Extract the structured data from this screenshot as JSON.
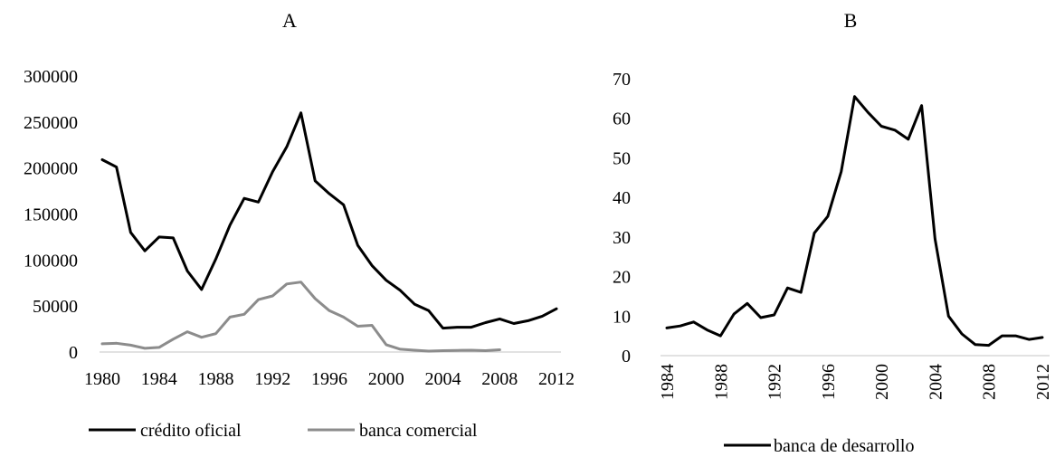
{
  "chart_data": [
    {
      "type": "line",
      "title": "A",
      "xlabel": "",
      "ylabel": "",
      "ylim": [
        0,
        300000
      ],
      "xlim": [
        1980,
        2012
      ],
      "x_ticks": [
        "1980",
        "1984",
        "1988",
        "1992",
        "1996",
        "2000",
        "2004",
        "2008",
        "2012"
      ],
      "y_ticks": [
        "0",
        "50000",
        "100000",
        "150000",
        "200000",
        "250000",
        "300000"
      ],
      "grid": false,
      "legend": "bottom",
      "series": [
        {
          "name": "crédito oficial",
          "color": "#000000",
          "x": [
            1980,
            1981,
            1982,
            1983,
            1984,
            1985,
            1986,
            1987,
            1988,
            1989,
            1990,
            1991,
            1992,
            1993,
            1994,
            1995,
            1996,
            1997,
            1998,
            1999,
            2000,
            2001,
            2002,
            2003,
            2004,
            2005,
            2006,
            2007,
            2008,
            2009,
            2010,
            2011,
            2012
          ],
          "values": [
            209000,
            201000,
            130000,
            110000,
            125000,
            124000,
            88000,
            68000,
            101000,
            138000,
            167000,
            163000,
            196000,
            223000,
            260000,
            186000,
            172000,
            160000,
            116000,
            94000,
            78000,
            67000,
            52000,
            45000,
            26000,
            27000,
            27000,
            32000,
            36000,
            31000,
            34000,
            39000,
            47000
          ]
        },
        {
          "name": "banca comercial",
          "color": "#8c8c8c",
          "x": [
            1980,
            1981,
            1982,
            1983,
            1984,
            1985,
            1986,
            1987,
            1988,
            1989,
            1990,
            1991,
            1992,
            1993,
            1994,
            1995,
            1996,
            1997,
            1998,
            1999,
            2000,
            2001,
            2002,
            2003,
            2004,
            2005,
            2006,
            2007,
            2008
          ],
          "values": [
            9000,
            9500,
            7500,
            4000,
            5000,
            14000,
            22000,
            16000,
            20000,
            38000,
            41000,
            57000,
            61000,
            74000,
            76000,
            58000,
            45000,
            38000,
            28000,
            29000,
            8000,
            3000,
            2000,
            1000,
            1500,
            1800,
            2000,
            1500,
            2500
          ]
        }
      ]
    },
    {
      "type": "line",
      "title": "B",
      "xlabel": "",
      "ylabel": "",
      "ylim": [
        0,
        70
      ],
      "xlim": [
        1984,
        2012
      ],
      "x_ticks": [
        "1984",
        "1988",
        "1992",
        "1996",
        "2000",
        "2004",
        "2008",
        "2012"
      ],
      "y_ticks": [
        "0",
        "10",
        "20",
        "30",
        "40",
        "50",
        "60",
        "70"
      ],
      "grid": false,
      "legend": "bottom",
      "series": [
        {
          "name": "banca de desarrollo",
          "color": "#000000",
          "x": [
            1984,
            1985,
            1986,
            1987,
            1988,
            1989,
            1990,
            1991,
            1992,
            1993,
            1994,
            1995,
            1996,
            1997,
            1998,
            1999,
            2000,
            2001,
            2002,
            2003,
            2004,
            2005,
            2006,
            2007,
            2008,
            2009,
            2010,
            2011,
            2012
          ],
          "values": [
            7,
            7.5,
            8.5,
            6.5,
            5,
            10.5,
            13.2,
            9.6,
            10.3,
            17.1,
            16,
            31,
            35.2,
            46.5,
            65.5,
            61.5,
            58,
            57,
            54.7,
            63.2,
            29.5,
            10,
            5.5,
            2.8,
            2.6,
            5,
            5,
            4.1,
            4.6
          ]
        }
      ]
    }
  ]
}
